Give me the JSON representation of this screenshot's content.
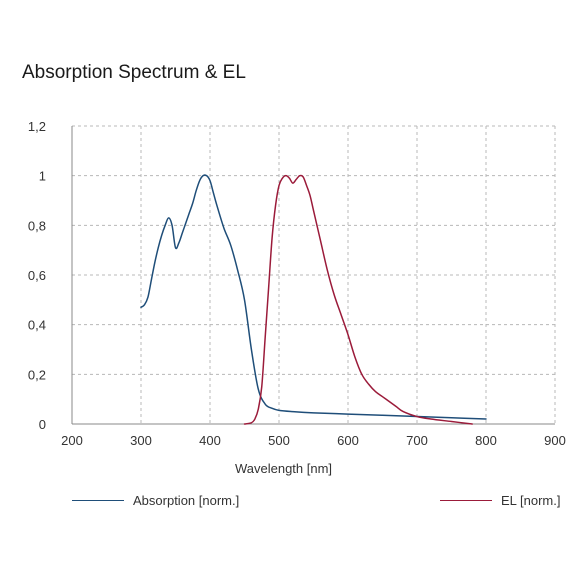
{
  "chart_data": {
    "type": "line",
    "title": "Absorption Spectrum & EL",
    "xlabel": "Wavelength [nm]",
    "ylabel": "",
    "xlim": [
      200,
      900
    ],
    "ylim": [
      0,
      1.2
    ],
    "x_ticks": [
      "200",
      "300",
      "400",
      "500",
      "600",
      "700",
      "800",
      "900"
    ],
    "y_ticks": [
      "0",
      "0,2",
      "0,4",
      "0,6",
      "0,8",
      "1",
      "1,2"
    ],
    "grid": true,
    "legend_position": "bottom",
    "series": [
      {
        "name": "Absorption [norm.]",
        "color": "#1f4e79",
        "points": [
          [
            300,
            0.47
          ],
          [
            305,
            0.48
          ],
          [
            310,
            0.51
          ],
          [
            315,
            0.58
          ],
          [
            320,
            0.65
          ],
          [
            325,
            0.71
          ],
          [
            330,
            0.76
          ],
          [
            335,
            0.8
          ],
          [
            340,
            0.83
          ],
          [
            345,
            0.8
          ],
          [
            350,
            0.71
          ],
          [
            355,
            0.73
          ],
          [
            360,
            0.77
          ],
          [
            365,
            0.81
          ],
          [
            370,
            0.85
          ],
          [
            375,
            0.89
          ],
          [
            380,
            0.94
          ],
          [
            385,
            0.98
          ],
          [
            390,
            1.0
          ],
          [
            395,
            1.0
          ],
          [
            400,
            0.98
          ],
          [
            405,
            0.93
          ],
          [
            410,
            0.88
          ],
          [
            420,
            0.79
          ],
          [
            430,
            0.72
          ],
          [
            440,
            0.62
          ],
          [
            450,
            0.5
          ],
          [
            460,
            0.3
          ],
          [
            470,
            0.14
          ],
          [
            480,
            0.08
          ],
          [
            490,
            0.063
          ],
          [
            500,
            0.055
          ],
          [
            520,
            0.05
          ],
          [
            550,
            0.045
          ],
          [
            600,
            0.04
          ],
          [
            650,
            0.035
          ],
          [
            700,
            0.03
          ],
          [
            750,
            0.025
          ],
          [
            800,
            0.02
          ]
        ]
      },
      {
        "name": "EL [norm.]",
        "color": "#9b1b3a",
        "points": [
          [
            450,
            0.0
          ],
          [
            460,
            0.005
          ],
          [
            465,
            0.02
          ],
          [
            470,
            0.06
          ],
          [
            475,
            0.15
          ],
          [
            480,
            0.35
          ],
          [
            485,
            0.55
          ],
          [
            490,
            0.75
          ],
          [
            495,
            0.88
          ],
          [
            500,
            0.96
          ],
          [
            505,
            0.99
          ],
          [
            510,
            1.0
          ],
          [
            515,
            0.99
          ],
          [
            520,
            0.97
          ],
          [
            525,
            0.985
          ],
          [
            530,
            1.0
          ],
          [
            535,
            0.995
          ],
          [
            540,
            0.96
          ],
          [
            545,
            0.92
          ],
          [
            550,
            0.86
          ],
          [
            560,
            0.74
          ],
          [
            570,
            0.62
          ],
          [
            580,
            0.52
          ],
          [
            590,
            0.44
          ],
          [
            600,
            0.36
          ],
          [
            610,
            0.27
          ],
          [
            620,
            0.2
          ],
          [
            630,
            0.16
          ],
          [
            640,
            0.13
          ],
          [
            650,
            0.11
          ],
          [
            660,
            0.09
          ],
          [
            670,
            0.07
          ],
          [
            680,
            0.05
          ],
          [
            700,
            0.03
          ],
          [
            720,
            0.02
          ],
          [
            750,
            0.01
          ],
          [
            780,
            0.0
          ]
        ]
      }
    ]
  }
}
